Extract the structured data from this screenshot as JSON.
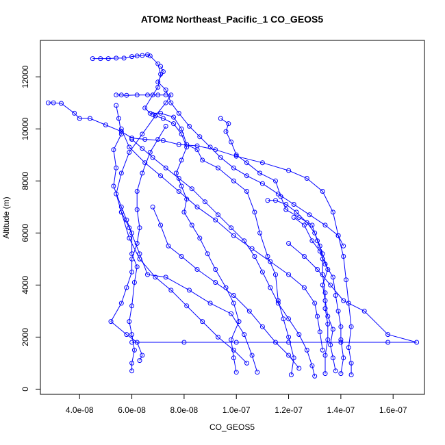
{
  "chart_data": {
    "type": "line",
    "title": "ATOM2 Northeast_Pacific_1 CO_GEOS5",
    "xlabel": "CO_GEOS5",
    "ylabel": "Altitude (m)",
    "xlim": [
      2.5e-08,
      1.72e-07
    ],
    "ylim": [
      -200,
      13400
    ],
    "x_ticks": [
      {
        "value": 4e-08,
        "label": "4.0e-08"
      },
      {
        "value": 6e-08,
        "label": "6.0e-08"
      },
      {
        "value": 8e-08,
        "label": "8.0e-08"
      },
      {
        "value": 1e-07,
        "label": "1.0e-07"
      },
      {
        "value": 1.2e-07,
        "label": "1.2e-07"
      },
      {
        "value": 1.4e-07,
        "label": "1.4e-07"
      },
      {
        "value": 1.6e-07,
        "label": "1.6e-07"
      }
    ],
    "y_ticks": [
      {
        "value": 0,
        "label": "0"
      },
      {
        "value": 2000,
        "label": "2000"
      },
      {
        "value": 4000,
        "label": "4000"
      },
      {
        "value": 6000,
        "label": "6000"
      },
      {
        "value": 8000,
        "label": "8000"
      },
      {
        "value": 10000,
        "label": "10000"
      },
      {
        "value": 12000,
        "label": "12000"
      }
    ],
    "color": "#0000ff",
    "marker": "open-circle",
    "grid": false,
    "series": [
      {
        "points": [
          [
            4.5e-08,
            12700
          ],
          [
            4.8e-08,
            12700
          ],
          [
            5.1e-08,
            12700
          ],
          [
            5.4e-08,
            12720
          ],
          [
            5.7e-08,
            12720
          ],
          [
            6e-08,
            12780
          ],
          [
            6.2e-08,
            12800
          ],
          [
            6.4e-08,
            12820
          ],
          [
            6.6e-08,
            12850
          ],
          [
            6.7e-08,
            12800
          ],
          [
            7e-08,
            12500
          ],
          [
            7.1e-08,
            12100
          ],
          [
            7e-08,
            11600
          ],
          [
            6.8e-08,
            11300
          ],
          [
            6.5e-08,
            10800
          ],
          [
            6.7e-08,
            10600
          ],
          [
            7.1e-08,
            10600
          ],
          [
            7.6e-08,
            10450
          ],
          [
            7.9e-08,
            10000
          ],
          [
            8.1e-08,
            9400
          ],
          [
            8.5e-08,
            9200
          ],
          [
            8.7e-08,
            8800
          ],
          [
            9.3e-08,
            8500
          ],
          [
            9.9e-08,
            8000
          ],
          [
            1.04e-07,
            7600
          ],
          [
            1.07e-07,
            6800
          ],
          [
            1.09e-07,
            6000
          ],
          [
            1.12e-07,
            5100
          ],
          [
            1.15e-07,
            4400
          ],
          [
            1.16e-07,
            3400
          ],
          [
            1.18e-07,
            2700
          ],
          [
            1.2e-07,
            2000
          ],
          [
            1.22e-07,
            1200
          ],
          [
            1.21e-07,
            550
          ]
        ]
      },
      {
        "points": [
          [
            2.8e-08,
            11000
          ],
          [
            3e-08,
            11000
          ],
          [
            3.3e-08,
            10980
          ],
          [
            3.8e-08,
            10600
          ],
          [
            4e-08,
            10400
          ],
          [
            4.4e-08,
            10400
          ],
          [
            5e-08,
            10150
          ],
          [
            5.6e-08,
            9900
          ],
          [
            6e-08,
            9650
          ],
          [
            6.5e-08,
            9600
          ],
          [
            7.2e-08,
            9550
          ],
          [
            7.8e-08,
            9400
          ],
          [
            8.5e-08,
            9350
          ],
          [
            9.2e-08,
            9200
          ],
          [
            1e-07,
            8950
          ],
          [
            1.1e-07,
            8700
          ],
          [
            1.2e-07,
            8400
          ],
          [
            1.27e-07,
            8100
          ],
          [
            1.33e-07,
            7600
          ],
          [
            1.37e-07,
            6800
          ],
          [
            1.39e-07,
            5900
          ],
          [
            1.41e-07,
            5100
          ],
          [
            1.42e-07,
            4200
          ],
          [
            1.43e-07,
            3300
          ],
          [
            1.44e-07,
            2400
          ],
          [
            1.43e-07,
            1600
          ],
          [
            1.44e-07,
            1000
          ],
          [
            1.44e-07,
            550
          ]
        ]
      },
      {
        "points": [
          [
            5.4e-08,
            11300
          ],
          [
            5.6e-08,
            11300
          ],
          [
            5.8e-08,
            11290
          ],
          [
            6.2e-08,
            11300
          ],
          [
            6.6e-08,
            11300
          ],
          [
            7e-08,
            11300
          ],
          [
            7.3e-08,
            11300
          ],
          [
            7.5e-08,
            11300
          ],
          [
            7.3e-08,
            11000
          ],
          [
            6.9e-08,
            10500
          ],
          [
            6.4e-08,
            9800
          ],
          [
            5.9e-08,
            9100
          ],
          [
            5.6e-08,
            8300
          ],
          [
            5.4e-08,
            7500
          ],
          [
            5.6e-08,
            6800
          ],
          [
            5.9e-08,
            6200
          ],
          [
            6.3e-08,
            5200
          ],
          [
            6.6e-08,
            4400
          ],
          [
            7.3e-08,
            4300
          ],
          [
            8.2e-08,
            3800
          ],
          [
            9e-08,
            3300
          ],
          [
            9.8e-08,
            2900
          ],
          [
            1.03e-07,
            2100
          ],
          [
            1.06e-07,
            1300
          ],
          [
            1.08e-07,
            650
          ]
        ]
      },
      {
        "points": [
          [
            5.4e-08,
            10900
          ],
          [
            5.5e-08,
            10400
          ],
          [
            5.6e-08,
            9800
          ],
          [
            5.3e-08,
            9200
          ],
          [
            5.4e-08,
            8500
          ],
          [
            5.3e-08,
            7800
          ],
          [
            5.6e-08,
            7000
          ],
          [
            5.8e-08,
            6500
          ],
          [
            6e-08,
            6000
          ],
          [
            6e-08,
            5200
          ],
          [
            6.2e-08,
            4700
          ],
          [
            6.1e-08,
            4100
          ],
          [
            6e-08,
            3200
          ],
          [
            5.9e-08,
            2600
          ],
          [
            6e-08,
            2100
          ],
          [
            6.1e-08,
            1500
          ],
          [
            6e-08,
            1000
          ],
          [
            6e-08,
            700
          ]
        ]
      },
      {
        "points": [
          [
            7.3e-08,
            10100
          ],
          [
            7e-08,
            9600
          ],
          [
            6.7e-08,
            9100
          ],
          [
            6.4e-08,
            8300
          ],
          [
            6.2e-08,
            7600
          ],
          [
            6.2e-08,
            6900
          ],
          [
            6.3e-08,
            6200
          ],
          [
            6.2e-08,
            5600
          ],
          [
            6e-08,
            5000
          ],
          [
            6e-08,
            4500
          ],
          [
            5.8e-08,
            3900
          ],
          [
            5.6e-08,
            3300
          ],
          [
            5.2e-08,
            2600
          ],
          [
            5.8e-08,
            2100
          ],
          [
            6.2e-08,
            1800
          ],
          [
            6.4e-08,
            1300
          ],
          [
            6.3e-08,
            1100
          ]
        ]
      },
      {
        "points": [
          [
            9.4e-08,
            10400
          ],
          [
            9.7e-08,
            10200
          ],
          [
            9.6e-08,
            9900
          ],
          [
            9.8e-08,
            9500
          ],
          [
            1e-07,
            9000
          ],
          [
            1.04e-07,
            8700
          ],
          [
            1.09e-07,
            8300
          ],
          [
            1.15e-07,
            8000
          ],
          [
            1.17e-07,
            7400
          ],
          [
            1.19e-07,
            6900
          ],
          [
            1.24e-07,
            6600
          ],
          [
            1.29e-07,
            6300
          ],
          [
            1.31e-07,
            5700
          ],
          [
            1.33e-07,
            5200
          ],
          [
            1.35e-07,
            4600
          ],
          [
            1.33e-07,
            4000
          ],
          [
            1.34e-07,
            3400
          ],
          [
            1.35e-07,
            2800
          ],
          [
            1.37e-07,
            2300
          ],
          [
            1.36e-07,
            1700
          ],
          [
            1.37e-07,
            1200
          ],
          [
            1.38e-07,
            700
          ]
        ]
      },
      {
        "points": [
          [
            6.8e-08,
            10550
          ],
          [
            6.9e-08,
            10500
          ],
          [
            7.2e-08,
            10400
          ],
          [
            7.6e-08,
            10200
          ],
          [
            7.9e-08,
            9800
          ],
          [
            8.1e-08,
            9300
          ],
          [
            7.9e-08,
            8800
          ],
          [
            7.7e-08,
            8300
          ],
          [
            7.9e-08,
            7800
          ],
          [
            8.1e-08,
            7300
          ],
          [
            8e-08,
            6800
          ],
          [
            8.3e-08,
            6300
          ],
          [
            8.6e-08,
            5800
          ],
          [
            8.9e-08,
            5200
          ],
          [
            9.2e-08,
            4600
          ],
          [
            9.6e-08,
            3900
          ],
          [
            9.9e-08,
            3300
          ],
          [
            1.01e-07,
            2600
          ],
          [
            9.8e-08,
            1900
          ],
          [
            9.9e-08,
            1200
          ],
          [
            1e-07,
            650
          ]
        ]
      },
      {
        "points": [
          [
            6e-08,
            9600
          ],
          [
            6.4e-08,
            9250
          ],
          [
            6.8e-08,
            8900
          ],
          [
            7.3e-08,
            8500
          ],
          [
            7.8e-08,
            8100
          ],
          [
            8.3e-08,
            7700
          ],
          [
            8.8e-08,
            7200
          ],
          [
            9.3e-08,
            6700
          ],
          [
            9.8e-08,
            6200
          ],
          [
            1.03e-07,
            5700
          ],
          [
            1.07e-07,
            5100
          ],
          [
            1.1e-07,
            4500
          ],
          [
            1.13e-07,
            3900
          ],
          [
            1.16e-07,
            3300
          ],
          [
            1.2e-07,
            2700
          ],
          [
            1.24e-07,
            2100
          ],
          [
            1.27e-07,
            1500
          ],
          [
            1.29e-07,
            900
          ],
          [
            1.3e-07,
            500
          ]
        ]
      },
      {
        "points": [
          [
            6.8e-08,
            7000
          ],
          [
            7.1e-08,
            6300
          ],
          [
            7.4e-08,
            5500
          ],
          [
            7.9e-08,
            5100
          ],
          [
            8.5e-08,
            4600
          ],
          [
            9.2e-08,
            4100
          ],
          [
            9.9e-08,
            3600
          ],
          [
            1.05e-07,
            3000
          ],
          [
            1.1e-07,
            2400
          ],
          [
            1.15e-07,
            1800
          ],
          [
            1.2e-07,
            1300
          ],
          [
            1.24e-07,
            800
          ]
        ]
      },
      {
        "points": [
          [
            5.6e-08,
            6800
          ],
          [
            5.9e-08,
            5800
          ],
          [
            6.3e-08,
            5000
          ],
          [
            6.9e-08,
            4300
          ],
          [
            7.5e-08,
            3800
          ],
          [
            8.1e-08,
            3200
          ],
          [
            8.7e-08,
            2600
          ],
          [
            9.3e-08,
            2000
          ],
          [
            9.9e-08,
            1500
          ],
          [
            1.04e-07,
            1000
          ]
        ]
      },
      {
        "points": [
          [
            1.12e-07,
            7250
          ],
          [
            1.15e-07,
            7250
          ],
          [
            1.19e-07,
            7100
          ],
          [
            1.23e-07,
            6800
          ],
          [
            1.27e-07,
            6400
          ],
          [
            1.3e-07,
            6000
          ],
          [
            1.32e-07,
            5500
          ],
          [
            1.33e-07,
            5000
          ],
          [
            1.33e-07,
            4400
          ],
          [
            1.34e-07,
            3700
          ],
          [
            1.34e-07,
            3100
          ],
          [
            1.35e-07,
            2500
          ],
          [
            1.35e-07,
            1900
          ],
          [
            1.34e-07,
            1300
          ],
          [
            1.34e-07,
            600
          ]
        ]
      },
      {
        "points": [
          [
            1.22e-07,
            6600
          ],
          [
            1.26e-07,
            6300
          ],
          [
            1.29e-07,
            5700
          ],
          [
            1.32e-07,
            5300
          ],
          [
            1.34e-07,
            4800
          ],
          [
            1.37e-07,
            4300
          ],
          [
            1.38e-07,
            3600
          ],
          [
            1.39e-07,
            3000
          ],
          [
            1.4e-07,
            2400
          ],
          [
            1.4e-07,
            1900
          ],
          [
            1.41e-07,
            1200
          ],
          [
            1.4e-07,
            600
          ]
        ]
      },
      {
        "points": [
          [
            6e-08,
            1800
          ],
          [
            8e-08,
            1800
          ],
          [
            1e-07,
            1800
          ],
          [
            1.2e-07,
            1800
          ],
          [
            1.4e-07,
            1800
          ],
          [
            1.58e-07,
            1800
          ],
          [
            1.69e-07,
            1800
          ],
          [
            1.58e-07,
            2100
          ],
          [
            1.49e-07,
            3000
          ],
          [
            1.41e-07,
            3400
          ],
          [
            1.36e-07,
            4000
          ],
          [
            1.31e-07,
            4600
          ],
          [
            1.26e-07,
            5100
          ],
          [
            1.2e-07,
            5600
          ]
        ]
      },
      {
        "points": [
          [
            7.1e-08,
            12400
          ],
          [
            7.2e-08,
            12200
          ],
          [
            7e-08,
            11800
          ],
          [
            7.3e-08,
            11500
          ],
          [
            7.5e-08,
            11000
          ],
          [
            7.8e-08,
            10600
          ],
          [
            8.2e-08,
            10100
          ],
          [
            8.6e-08,
            9700
          ],
          [
            9e-08,
            9300
          ],
          [
            9.4e-08,
            8900
          ],
          [
            9.9e-08,
            8500
          ],
          [
            1.04e-07,
            8200
          ],
          [
            1.1e-07,
            7900
          ],
          [
            1.16e-07,
            7500
          ],
          [
            1.22e-07,
            7100
          ],
          [
            1.28e-07,
            6700
          ],
          [
            1.34e-07,
            6300
          ],
          [
            1.39e-07,
            5900
          ],
          [
            1.41e-07,
            5500
          ]
        ]
      },
      {
        "points": [
          [
            5.6e-08,
            10000
          ],
          [
            5.9e-08,
            9300
          ],
          [
            6.5e-08,
            8700
          ],
          [
            7.1e-08,
            8200
          ],
          [
            7.8e-08,
            7600
          ],
          [
            8.5e-08,
            7000
          ],
          [
            9.2e-08,
            6500
          ],
          [
            9.9e-08,
            5900
          ],
          [
            1.06e-07,
            5400
          ],
          [
            1.13e-07,
            4900
          ],
          [
            1.2e-07,
            4400
          ],
          [
            1.26e-07,
            3900
          ],
          [
            1.3e-07,
            3300
          ],
          [
            1.31e-07,
            2800
          ],
          [
            1.32e-07,
            2200
          ],
          [
            1.33e-07,
            1500
          ]
        ]
      }
    ]
  }
}
